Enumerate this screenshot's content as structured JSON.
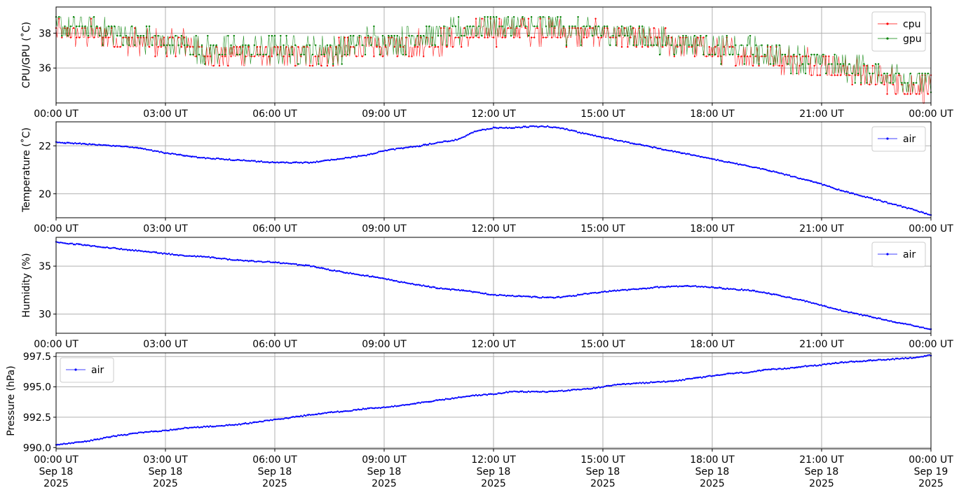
{
  "chart_data": [
    {
      "type": "line",
      "ylabel": "CPU/GPU (˚C)",
      "xlabel": "",
      "xlim": [
        "2025-09-18 00:00",
        "2025-09-19 00:00"
      ],
      "ylim": [
        34.0,
        39.5
      ],
      "yticks": [
        36,
        38
      ],
      "ytick_labels": [
        "36",
        "38"
      ],
      "xtick_labels": [
        "00:00 UT",
        "03:00 UT",
        "06:00 UT",
        "09:00 UT",
        "12:00 UT",
        "15:00 UT",
        "18:00 UT",
        "21:00 UT",
        "00:00 UT"
      ],
      "grid": true,
      "legend": "top-right",
      "x_hours": [
        0,
        0.5,
        1,
        1.5,
        2,
        2.5,
        3,
        3.5,
        4,
        4.5,
        5,
        5.5,
        6,
        6.5,
        7,
        7.5,
        8,
        8.5,
        9,
        9.5,
        10,
        10.5,
        11,
        11.5,
        12,
        12.5,
        13,
        13.5,
        14,
        14.5,
        15,
        15.5,
        16,
        16.5,
        17,
        17.5,
        18,
        18.5,
        19,
        19.5,
        20,
        20.5,
        21,
        21.5,
        22,
        22.5,
        23,
        23.5,
        24
      ],
      "series": [
        {
          "name": "cpu",
          "color": "#ff0000",
          "values": [
            38.0,
            38.0,
            38.0,
            37.8,
            37.5,
            37.5,
            37.5,
            37.5,
            37.0,
            36.8,
            36.8,
            36.8,
            36.8,
            36.8,
            36.8,
            36.8,
            37.0,
            37.2,
            37.3,
            37.5,
            37.5,
            37.5,
            37.8,
            38.0,
            38.2,
            38.2,
            38.2,
            38.2,
            38.0,
            38.0,
            38.0,
            37.8,
            37.8,
            37.5,
            37.5,
            37.3,
            37.0,
            37.0,
            36.8,
            36.8,
            36.5,
            36.5,
            36.3,
            36.0,
            35.8,
            35.5,
            35.3,
            35.0,
            34.8
          ]
        },
        {
          "name": "gpu",
          "color": "#008000",
          "values": [
            38.3,
            38.3,
            38.2,
            38.0,
            37.8,
            37.5,
            37.5,
            37.3,
            37.0,
            37.0,
            37.0,
            37.0,
            37.0,
            37.0,
            37.0,
            37.0,
            37.2,
            37.5,
            37.5,
            37.5,
            37.8,
            37.8,
            38.0,
            38.3,
            38.3,
            38.3,
            38.3,
            38.3,
            38.2,
            38.0,
            38.0,
            38.0,
            37.8,
            37.5,
            37.5,
            37.5,
            37.2,
            37.0,
            37.0,
            36.8,
            36.5,
            36.5,
            36.3,
            36.0,
            36.0,
            35.5,
            35.5,
            35.3,
            35.0
          ]
        }
      ]
    },
    {
      "type": "line",
      "ylabel": "Temperature (˚C)",
      "xlabel": "",
      "xlim": [
        "2025-09-18 00:00",
        "2025-09-19 00:00"
      ],
      "ylim": [
        19.0,
        23.0
      ],
      "yticks": [
        20,
        22
      ],
      "ytick_labels": [
        "20",
        "22"
      ],
      "xtick_labels": [
        "00:00 UT",
        "03:00 UT",
        "06:00 UT",
        "09:00 UT",
        "12:00 UT",
        "15:00 UT",
        "18:00 UT",
        "21:00 UT",
        "00:00 UT"
      ],
      "grid": true,
      "legend": "top-right",
      "x_hours": [
        0,
        0.5,
        1,
        1.5,
        2,
        2.5,
        3,
        3.5,
        4,
        4.5,
        5,
        5.5,
        6,
        6.5,
        7,
        7.5,
        8,
        8.5,
        9,
        9.5,
        10,
        10.5,
        11,
        11.5,
        12,
        12.5,
        13,
        13.5,
        14,
        14.5,
        15,
        15.5,
        16,
        16.5,
        17,
        17.5,
        18,
        18.5,
        19,
        19.5,
        20,
        20.5,
        21,
        21.5,
        22,
        22.5,
        23,
        23.5,
        24
      ],
      "series": [
        {
          "name": "air",
          "color": "#0000ff",
          "values": [
            22.15,
            22.1,
            22.05,
            22.0,
            21.95,
            21.85,
            21.7,
            21.6,
            21.5,
            21.45,
            21.4,
            21.35,
            21.3,
            21.3,
            21.3,
            21.4,
            21.5,
            21.6,
            21.8,
            21.9,
            22.0,
            22.15,
            22.25,
            22.6,
            22.75,
            22.75,
            22.8,
            22.8,
            22.7,
            22.5,
            22.35,
            22.2,
            22.05,
            21.9,
            21.75,
            21.6,
            21.45,
            21.3,
            21.15,
            21.0,
            20.8,
            20.6,
            20.4,
            20.15,
            19.95,
            19.75,
            19.55,
            19.35,
            19.1
          ]
        }
      ]
    },
    {
      "type": "line",
      "ylabel": "Humidity (%)",
      "xlabel": "",
      "xlim": [
        "2025-09-18 00:00",
        "2025-09-19 00:00"
      ],
      "ylim": [
        28.0,
        38.0
      ],
      "yticks": [
        30,
        35
      ],
      "ytick_labels": [
        "30",
        "35"
      ],
      "xtick_labels": [
        "00:00 UT",
        "03:00 UT",
        "06:00 UT",
        "09:00 UT",
        "12:00 UT",
        "15:00 UT",
        "18:00 UT",
        "21:00 UT",
        "00:00 UT"
      ],
      "grid": true,
      "legend": "top-right",
      "x_hours": [
        0,
        0.5,
        1,
        1.5,
        2,
        2.5,
        3,
        3.5,
        4,
        4.5,
        5,
        5.5,
        6,
        6.5,
        7,
        7.5,
        8,
        8.5,
        9,
        9.5,
        10,
        10.5,
        11,
        11.5,
        12,
        12.5,
        13,
        13.5,
        14,
        14.5,
        15,
        15.5,
        16,
        16.5,
        17,
        17.5,
        18,
        18.5,
        19,
        19.5,
        20,
        20.5,
        21,
        21.5,
        22,
        22.5,
        23,
        23.5,
        24
      ],
      "series": [
        {
          "name": "air",
          "color": "#0000ff",
          "values": [
            37.5,
            37.3,
            37.1,
            36.9,
            36.7,
            36.5,
            36.3,
            36.1,
            36.0,
            35.8,
            35.6,
            35.5,
            35.4,
            35.2,
            35.0,
            34.6,
            34.3,
            34.0,
            33.7,
            33.3,
            33.0,
            32.7,
            32.5,
            32.3,
            32.0,
            31.9,
            31.8,
            31.7,
            31.8,
            32.1,
            32.3,
            32.5,
            32.6,
            32.8,
            32.9,
            32.9,
            32.8,
            32.6,
            32.5,
            32.2,
            31.8,
            31.4,
            30.9,
            30.4,
            30.0,
            29.6,
            29.2,
            28.8,
            28.4
          ]
        }
      ]
    },
    {
      "type": "line",
      "ylabel": "Pressure (hPa)",
      "xlabel": "",
      "xlim": [
        "2025-09-18 00:00",
        "2025-09-19 00:00"
      ],
      "ylim": [
        989.9,
        997.8
      ],
      "yticks": [
        990.0,
        992.5,
        995.0,
        997.5
      ],
      "ytick_labels": [
        "990.0",
        "992.5",
        "995.0",
        "997.5"
      ],
      "xtick_labels": [
        "00:00 UT",
        "03:00 UT",
        "06:00 UT",
        "09:00 UT",
        "12:00 UT",
        "15:00 UT",
        "18:00 UT",
        "21:00 UT",
        "00:00 UT"
      ],
      "xtick_dates": [
        "Sep 18",
        "Sep 18",
        "Sep 18",
        "Sep 18",
        "Sep 18",
        "Sep 18",
        "Sep 18",
        "Sep 18",
        "Sep 19"
      ],
      "xtick_years": [
        "2025",
        "2025",
        "2025",
        "2025",
        "2025",
        "2025",
        "2025",
        "2025",
        "2025"
      ],
      "grid": true,
      "legend": "top-left",
      "x_hours": [
        0,
        0.5,
        1,
        1.5,
        2,
        2.5,
        3,
        3.5,
        4,
        4.5,
        5,
        5.5,
        6,
        6.5,
        7,
        7.5,
        8,
        8.5,
        9,
        9.5,
        10,
        10.5,
        11,
        11.5,
        12,
        12.5,
        13,
        13.5,
        14,
        14.5,
        15,
        15.5,
        16,
        16.5,
        17,
        17.5,
        18,
        18.5,
        19,
        19.5,
        20,
        20.5,
        21,
        21.5,
        22,
        22.5,
        23,
        23.5,
        24
      ],
      "series": [
        {
          "name": "air",
          "color": "#0000ff",
          "values": [
            990.2,
            990.4,
            990.6,
            990.9,
            991.1,
            991.3,
            991.4,
            991.6,
            991.7,
            991.8,
            991.9,
            992.1,
            992.3,
            992.5,
            992.7,
            992.9,
            993.0,
            993.2,
            993.3,
            993.5,
            993.7,
            993.9,
            994.1,
            994.3,
            994.4,
            994.6,
            994.6,
            994.6,
            994.7,
            994.8,
            995.0,
            995.2,
            995.3,
            995.4,
            995.5,
            995.7,
            995.9,
            996.1,
            996.2,
            996.4,
            996.5,
            996.7,
            996.8,
            997.0,
            997.1,
            997.2,
            997.3,
            997.4,
            997.6
          ]
        }
      ]
    }
  ]
}
